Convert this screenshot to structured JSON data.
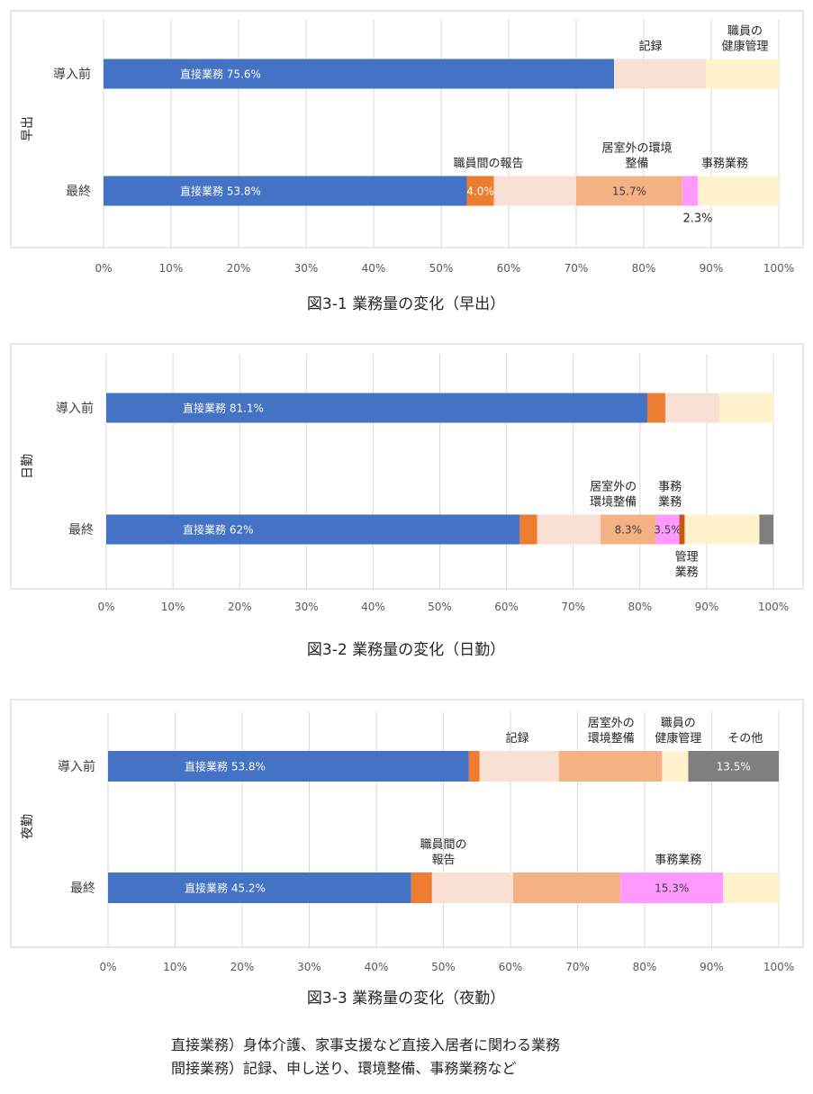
{
  "colors": {
    "直接業務": "#4472c4",
    "職員間の報告": "#ed7d31",
    "記録": "#f8e0d4",
    "居室外の環境整備": "#f4b183",
    "事務業務": "#ff99ff",
    "管理業務": "#c55a11",
    "職員の健康管理": "#fff2cc",
    "その他": "#7f7f7f",
    "その他2": "#a5a5a5"
  },
  "chart_data": [
    {
      "type": "bar",
      "orientation": "horizontal",
      "stacked": true,
      "side_label": "早出",
      "caption": "図3-1  業務量の変化（早出）",
      "categories": [
        "導入前",
        "最終"
      ],
      "xlim": [
        0,
        100
      ],
      "xticks": [
        "0%",
        "10%",
        "20%",
        "30%",
        "40%",
        "50%",
        "60%",
        "70%",
        "80%",
        "90%",
        "100%"
      ],
      "grid": true,
      "series": [
        {
          "name": "直接業務",
          "values": [
            75.6,
            53.8
          ],
          "labels": [
            "直接業務  75.6%",
            "直接業務  53.8%"
          ]
        },
        {
          "name": "職員間の報告",
          "values": [
            0,
            4.0
          ],
          "labels": [
            "",
            "4.0%"
          ]
        },
        {
          "name": "記録",
          "values": [
            13.6,
            12.2
          ],
          "labels": [
            "",
            ""
          ]
        },
        {
          "name": "居室外の環境整備",
          "values": [
            0,
            15.7
          ],
          "labels": [
            "",
            "15.7%"
          ]
        },
        {
          "name": "事務業務",
          "values": [
            0,
            2.3
          ],
          "labels": [
            "",
            ""
          ]
        },
        {
          "name": "職員の健康管理",
          "values": [
            10.8,
            12.0
          ],
          "labels": [
            "",
            ""
          ]
        }
      ],
      "annotations": [
        {
          "text": [
            "記録"
          ],
          "row": 0,
          "at": 81,
          "above": true
        },
        {
          "text": [
            "職員の",
            "健康管理"
          ],
          "row": 0,
          "at": 95,
          "above": true
        },
        {
          "text": [
            "職員間の報告"
          ],
          "row": 1,
          "at": 57,
          "above": true
        },
        {
          "text": [
            "居室外の環境",
            "整備"
          ],
          "row": 1,
          "at": 79,
          "above": true
        },
        {
          "text": [
            "事務業務"
          ],
          "row": 1,
          "at": 92,
          "above": true
        },
        {
          "text": [
            "2.3%"
          ],
          "row": 1,
          "at": 88,
          "above": false
        }
      ]
    },
    {
      "type": "bar",
      "orientation": "horizontal",
      "stacked": true,
      "side_label": "日勤",
      "caption": "図3-2  業務量の変化（日勤）",
      "categories": [
        "導入前",
        "最終"
      ],
      "xlim": [
        0,
        100
      ],
      "xticks": [
        "0%",
        "10%",
        "20%",
        "30%",
        "40%",
        "50%",
        "60%",
        "70%",
        "80%",
        "90%",
        "100%"
      ],
      "grid": true,
      "series": [
        {
          "name": "直接業務",
          "values": [
            81.1,
            62.0
          ],
          "labels": [
            "直接業務  81.1%",
            "直接業務  62%"
          ]
        },
        {
          "name": "職員間の報告",
          "values": [
            2.7,
            2.6
          ],
          "labels": [
            "",
            ""
          ]
        },
        {
          "name": "記録",
          "values": [
            8.1,
            9.5
          ],
          "labels": [
            "",
            ""
          ]
        },
        {
          "name": "居室外の環境整備",
          "values": [
            0,
            8.3
          ],
          "labels": [
            "",
            "8.3%"
          ]
        },
        {
          "name": "事務業務",
          "values": [
            0,
            3.5
          ],
          "labels": [
            "",
            "3.5%"
          ]
        },
        {
          "name": "管理業務",
          "values": [
            0,
            0.8
          ],
          "labels": [
            "",
            ""
          ]
        },
        {
          "name": "職員の健康管理",
          "values": [
            8.1,
            11.2
          ],
          "labels": [
            "",
            ""
          ]
        },
        {
          "name": "その他",
          "values": [
            0,
            2.1
          ],
          "labels": [
            "",
            ""
          ]
        }
      ],
      "annotations": [
        {
          "text": [
            "居室外の",
            "環境整備"
          ],
          "row": 1,
          "at": 76,
          "above": true
        },
        {
          "text": [
            "事務",
            "業務"
          ],
          "row": 1,
          "at": 84.5,
          "above": true
        },
        {
          "text": [
            "管理",
            "業務"
          ],
          "row": 1,
          "at": 87,
          "above": false
        }
      ]
    },
    {
      "type": "bar",
      "orientation": "horizontal",
      "stacked": true,
      "side_label": "夜勤",
      "caption": "図3-3  業務量の変化（夜勤）",
      "categories": [
        "導入前",
        "最終"
      ],
      "xlim": [
        0,
        100
      ],
      "xticks": [
        "0%",
        "10%",
        "20%",
        "30%",
        "40%",
        "50%",
        "60%",
        "70%",
        "80%",
        "90%",
        "100%"
      ],
      "grid": true,
      "series": [
        {
          "name": "直接業務",
          "values": [
            53.8,
            45.2
          ],
          "labels": [
            "直接業務  53.8%",
            "直接業務  45.2%"
          ]
        },
        {
          "name": "職員間の報告",
          "values": [
            1.6,
            3.1
          ],
          "labels": [
            "",
            ""
          ]
        },
        {
          "name": "記録",
          "values": [
            11.8,
            12.1
          ],
          "labels": [
            "",
            ""
          ]
        },
        {
          "name": "居室外の環境整備",
          "values": [
            15.4,
            16.0
          ],
          "labels": [
            "",
            ""
          ]
        },
        {
          "name": "事務業務",
          "values": [
            0,
            15.3
          ],
          "labels": [
            "",
            "15.3%"
          ]
        },
        {
          "name": "職員の健康管理",
          "values": [
            3.9,
            8.3
          ],
          "labels": [
            "",
            ""
          ]
        },
        {
          "name": "その他",
          "values": [
            13.5,
            0
          ],
          "labels": [
            "13.5%",
            ""
          ]
        }
      ],
      "annotations": [
        {
          "text": [
            "記録"
          ],
          "row": 0,
          "at": 61,
          "above": true
        },
        {
          "text": [
            "居室外の",
            "環境整備"
          ],
          "row": 0,
          "at": 75,
          "above": true
        },
        {
          "text": [
            "職員の",
            "健康管理"
          ],
          "row": 0,
          "at": 85,
          "above": true
        },
        {
          "text": [
            "その他"
          ],
          "row": 0,
          "at": 95,
          "above": true
        },
        {
          "text": [
            "職員間の",
            "報告"
          ],
          "row": 1,
          "at": 50,
          "above": true
        },
        {
          "text": [
            "事務業務"
          ],
          "row": 1,
          "at": 85,
          "above": true
        }
      ]
    }
  ],
  "footnote": {
    "line1": "直接業務）身体介護、家事支援など直接入居者に関わる業務",
    "line2": "間接業務）記録、申し送り、環境整備、事務業務など"
  }
}
